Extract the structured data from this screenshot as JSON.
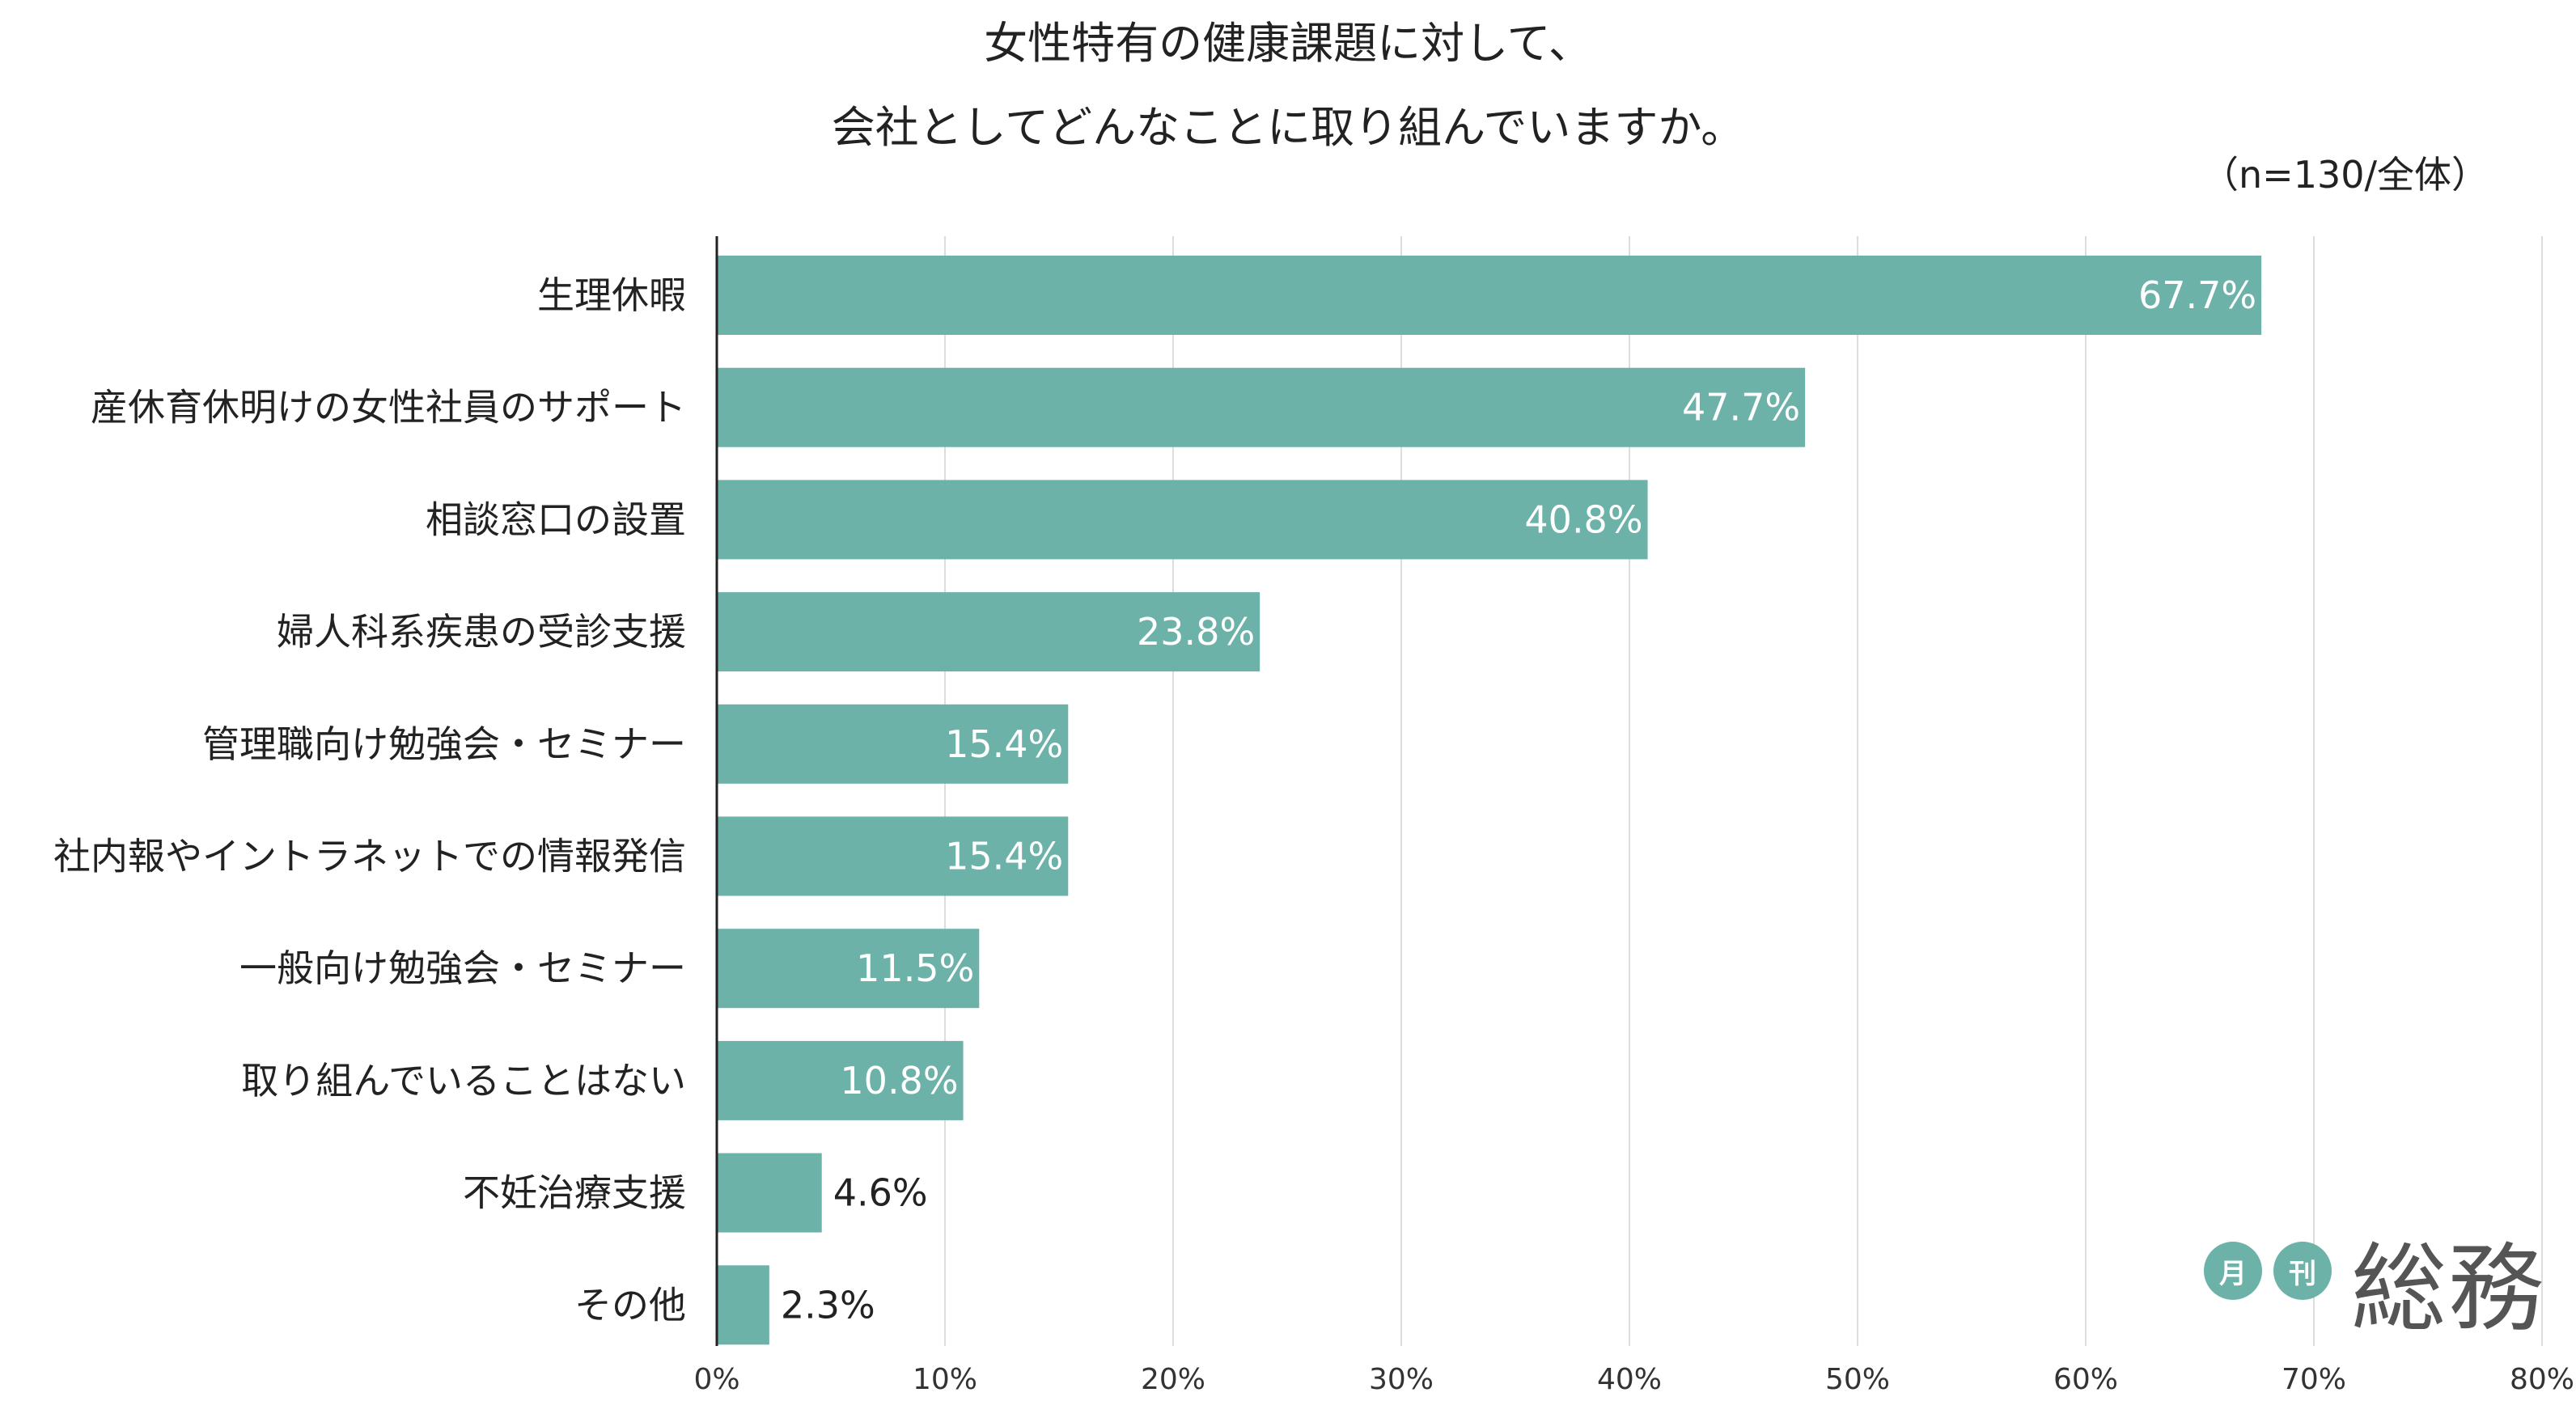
{
  "title": {
    "line1": "女性特有の健康課題に対して、",
    "line2": "会社としてどんなことに取り組んでいますか。"
  },
  "sample_note": "（n=130/全体）",
  "colors": {
    "bar": "#6db2a8",
    "axis": "#222222",
    "grid": "#dddddd",
    "logo": "#6db2a8",
    "logo_text": "#555555"
  },
  "logo": {
    "circle1": "月",
    "circle2": "刊",
    "main": "総務"
  },
  "chart_data": {
    "type": "bar",
    "orientation": "horizontal",
    "title": "女性特有の健康課題に対して、会社としてどんなことに取り組んでいますか。",
    "xlabel": "",
    "ylabel": "",
    "xlim": [
      0,
      80
    ],
    "ticks": [
      0,
      10,
      20,
      30,
      40,
      50,
      60,
      70,
      80
    ],
    "tick_suffix": "%",
    "grid": true,
    "categories": [
      "生理休暇",
      "産休育休明けの女性社員のサポート",
      "相談窓口の設置",
      "婦人科系疾患の受診支援",
      "管理職向け勉強会・セミナー",
      "社内報やイントラネットでの情報発信",
      "一般向け勉強会・セミナー",
      "取り組んでいることはない",
      "不妊治療支援",
      "その他"
    ],
    "values": [
      67.7,
      47.7,
      40.8,
      23.8,
      15.4,
      15.4,
      11.5,
      10.8,
      4.6,
      2.3
    ],
    "value_labels": [
      "67.7%",
      "47.7%",
      "40.8%",
      "23.8%",
      "15.4%",
      "15.4%",
      "11.5%",
      "10.8%",
      "4.6%",
      "2.3%"
    ]
  }
}
